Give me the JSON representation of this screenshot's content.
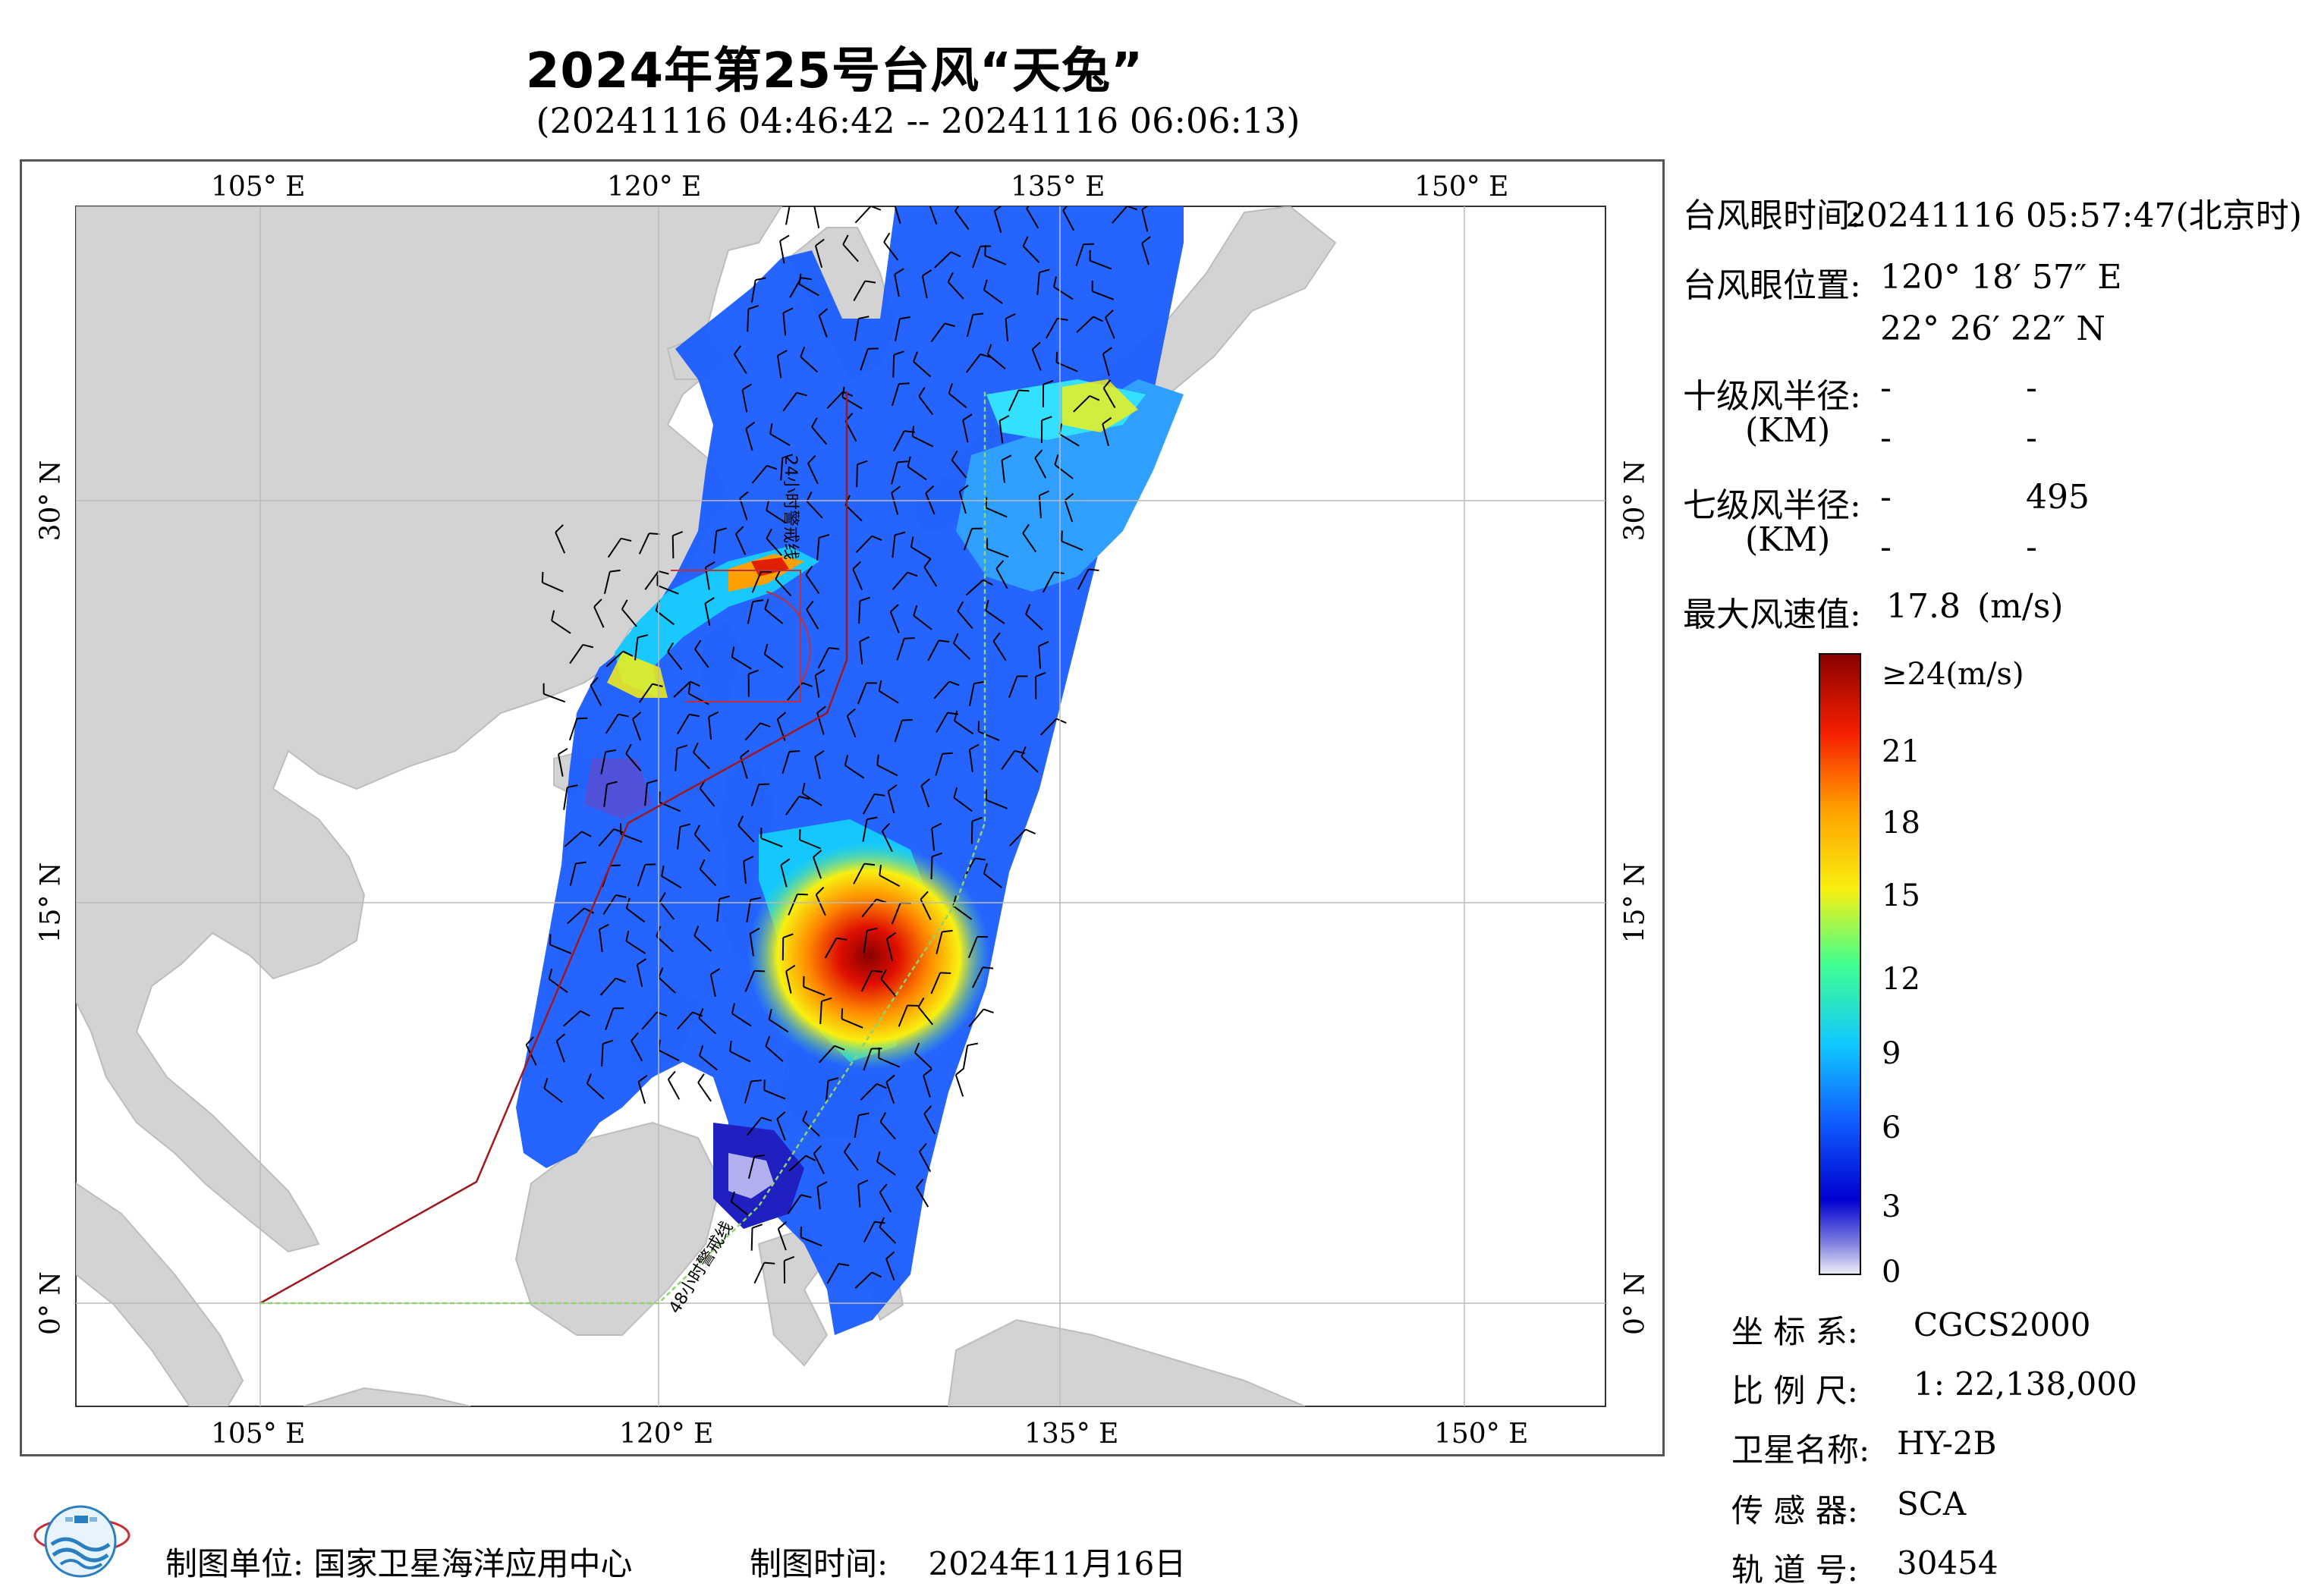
{
  "title": "2024年第25号台风“天兔”",
  "subtitle": "(20241116 04:46:42 -- 20241116 06:06:13)",
  "map": {
    "lon_ticks": [
      "105° E",
      "120° E",
      "135° E",
      "150° E"
    ],
    "lat_ticks": [
      "30° N",
      "15° N",
      "0° N"
    ],
    "warning_24h_label": "24小时警戒线",
    "warning_48h_label": "48小时警戒线",
    "colors": {
      "land": "#d3d3d3",
      "sea": "#ffffff",
      "warning24": "#a0181d",
      "warning48": "#8fd36a"
    }
  },
  "info": {
    "eye_time_label": "台风眼时间:",
    "eye_time_value": "20241116 05:57:47(北京时)",
    "eye_pos_label": "台风眼位置:",
    "eye_lon": "120° 18′ 57″ E",
    "eye_lat": "22° 26′ 22″ N",
    "r10_label": "十级风半径:",
    "r10_unit": "(KM)",
    "r10_values": [
      "-",
      "-",
      "-",
      "-"
    ],
    "r7_label": "七级风半径:",
    "r7_unit": "(KM)",
    "r7_values": [
      "-",
      "495",
      "-",
      "-"
    ],
    "max_wind_label": "最大风速值:",
    "max_wind_value": "17.8",
    "max_wind_unit": "(m/s)"
  },
  "colorbar": {
    "top_label": "≥24(m/s)",
    "ticks": [
      "21",
      "18",
      "15",
      "12",
      "9",
      "6",
      "3",
      "0"
    ],
    "colors": [
      "#f0f0f8",
      "#6060d8",
      "#0000d0",
      "#1060ff",
      "#10c8ff",
      "#40ff90",
      "#f8f010",
      "#ffa000",
      "#f82000",
      "#880000"
    ]
  },
  "meta": {
    "coord_label": "坐 标 系:",
    "coord_value": "CGCS2000",
    "scale_label": "比 例 尺:",
    "scale_value": "1: 22,138,000",
    "satellite_label": "卫星名称:",
    "satellite_value": "HY-2B",
    "sensor_label": "传 感 器:",
    "sensor_value": "SCA",
    "orbit_label": "轨 道 号:",
    "orbit_value": "30454"
  },
  "footer": {
    "unit_label": "制图单位:",
    "unit_value": "国家卫星海洋应用中心",
    "time_label": "制图时间:",
    "time_value": "2024年11月16日"
  }
}
